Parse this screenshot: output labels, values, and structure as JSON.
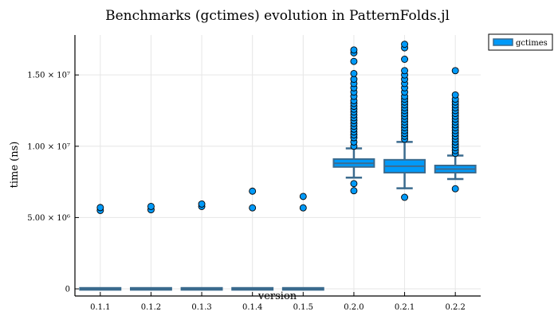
{
  "chart_data": {
    "type": "box",
    "title": "Benchmarks (gctimes) evolution in PatternFolds.jl",
    "xlabel": "version",
    "ylabel": "time (ns)",
    "categories": [
      "0.1.1",
      "0.1.2",
      "0.1.3",
      "0.1.4",
      "0.1.5",
      "0.2.0",
      "0.2.1",
      "0.2.2"
    ],
    "ylim": [
      -500000,
      17800000
    ],
    "yticks": [
      {
        "value": 0,
        "label": "0"
      },
      {
        "value": 5000000,
        "label": "5.00 × 10⁶"
      },
      {
        "value": 10000000,
        "label": "1.00 × 10⁷"
      },
      {
        "value": 15000000,
        "label": "1.50 × 10⁷"
      }
    ],
    "grid": true,
    "legend": {
      "position": "top-right",
      "entries": [
        "gctimes"
      ]
    },
    "colors": {
      "fill": "#009af9",
      "stroke": "#3b6b8e",
      "outline": "#000000",
      "grid": "#e6e6e6"
    },
    "series": [
      {
        "name": "gctimes",
        "boxes": [
          {
            "category": "0.1.1",
            "whisker_low": 0,
            "q1": 0,
            "median": 0,
            "q3": 0,
            "whisker_high": 0,
            "outliers": [
              5500000,
              5700000
            ]
          },
          {
            "category": "0.1.2",
            "whisker_low": 0,
            "q1": 0,
            "median": 0,
            "q3": 0,
            "whisker_high": 0,
            "outliers": [
              5550000,
              5780000
            ]
          },
          {
            "category": "0.1.3",
            "whisker_low": 0,
            "q1": 0,
            "median": 0,
            "q3": 0,
            "whisker_high": 0,
            "outliers": [
              5780000,
              5950000
            ]
          },
          {
            "category": "0.1.4",
            "whisker_low": 0,
            "q1": 0,
            "median": 0,
            "q3": 0,
            "whisker_high": 0,
            "outliers": [
              5680000,
              6850000
            ]
          },
          {
            "category": "0.1.5",
            "whisker_low": 0,
            "q1": 0,
            "median": 0,
            "q3": 0,
            "whisker_high": 0,
            "outliers": [
              5680000,
              6480000
            ]
          },
          {
            "category": "0.2.0",
            "whisker_low": 7800000,
            "q1": 8550000,
            "median": 8800000,
            "q3": 9100000,
            "whisker_high": 9850000,
            "outliers": [
              6880000,
              7380000,
              10000000,
              10300000,
              10600000,
              10800000,
              11000000,
              11200000,
              11400000,
              11600000,
              11800000,
              12000000,
              12200000,
              12400000,
              12600000,
              12800000,
              13000000,
              13200000,
              13500000,
              13800000,
              14100000,
              14400000,
              14700000,
              15100000,
              15950000,
              16550000,
              16750000
            ]
          },
          {
            "category": "0.2.1",
            "whisker_low": 7050000,
            "q1": 8150000,
            "median": 8600000,
            "q3": 9050000,
            "whisker_high": 10300000,
            "outliers": [
              6420000,
              10500000,
              10700000,
              10900000,
              11100000,
              11300000,
              11500000,
              11700000,
              11900000,
              12100000,
              12300000,
              12500000,
              12700000,
              12900000,
              13100000,
              13300000,
              13500000,
              13800000,
              14100000,
              14400000,
              14700000,
              15000000,
              15300000,
              16100000,
              16900000,
              17150000
            ]
          },
          {
            "category": "0.2.2",
            "whisker_low": 7700000,
            "q1": 8150000,
            "median": 8400000,
            "q3": 8650000,
            "whisker_high": 9350000,
            "outliers": [
              7020000,
              9500000,
              9700000,
              9900000,
              10100000,
              10300000,
              10500000,
              10700000,
              10900000,
              11100000,
              11300000,
              11500000,
              11700000,
              11900000,
              12100000,
              12300000,
              12500000,
              12700000,
              12900000,
              13100000,
              13300000,
              13600000,
              15300000
            ]
          }
        ]
      }
    ]
  }
}
